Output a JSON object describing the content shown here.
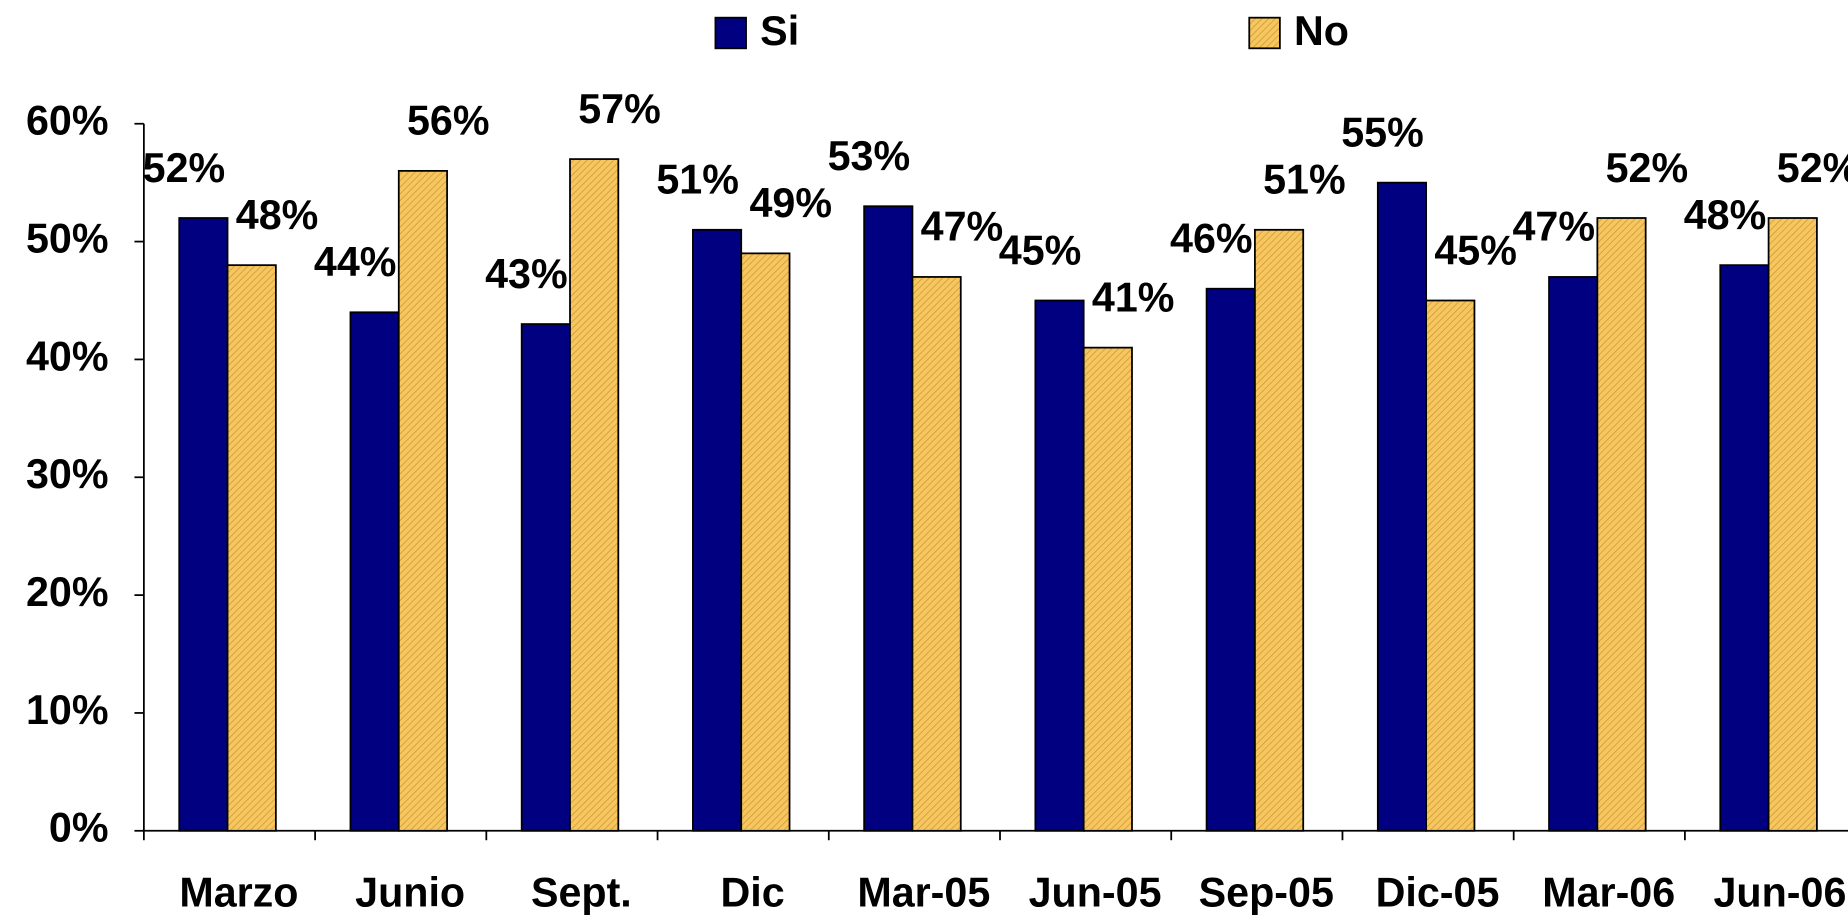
{
  "chart_data": {
    "type": "bar",
    "categories": [
      "Marzo",
      "Junio",
      "Sept.",
      "Dic",
      "Mar-05",
      "Jun-05",
      "Sep-05",
      "Dic-05",
      "Mar-06",
      "Jun-06"
    ],
    "series": [
      {
        "name": "Si",
        "color": "#000080",
        "values": [
          52,
          44,
          43,
          51,
          53,
          45,
          46,
          55,
          47,
          48
        ],
        "value_labels": [
          "52%",
          "44%",
          "43%",
          "51%",
          "53%",
          "45%",
          "46%",
          "55%",
          "47%",
          "48%"
        ]
      },
      {
        "name": "No",
        "color": "#f7c65e",
        "values": [
          48,
          56,
          57,
          49,
          47,
          41,
          51,
          45,
          52,
          52
        ],
        "value_labels": [
          "48%",
          "56%",
          "57%",
          "49%",
          "47%",
          "41%",
          "51%",
          "45%",
          "52%",
          "52%"
        ]
      }
    ],
    "ylim": [
      0,
      60
    ],
    "yticks": [
      {
        "value": 0,
        "label": "0%"
      },
      {
        "value": 10,
        "label": "10%"
      },
      {
        "value": 20,
        "label": "20%"
      },
      {
        "value": 30,
        "label": "30%"
      },
      {
        "value": 40,
        "label": "40%"
      },
      {
        "value": 50,
        "label": "50%"
      },
      {
        "value": 60,
        "label": "60%"
      }
    ],
    "legend": "top"
  }
}
